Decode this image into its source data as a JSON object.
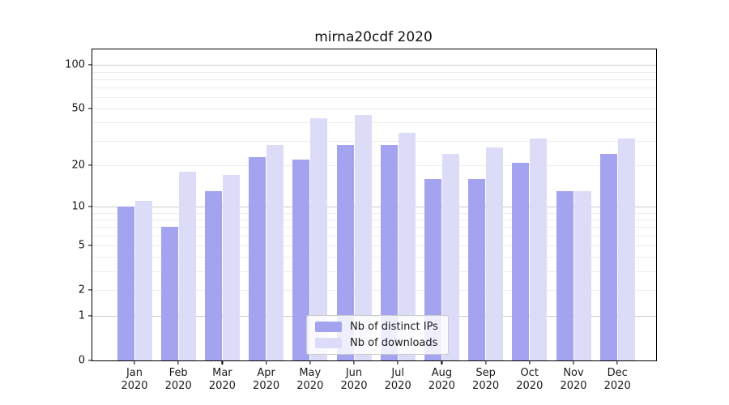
{
  "title": "mirna20cdf 2020",
  "colors": {
    "series_ips": "#a3a3f0",
    "series_downloads": "#dcdcf9",
    "gridline_minor": "#ededed",
    "gridline_major": "#cccccc",
    "spine": "#000000",
    "text": "#1a1a1a",
    "legend_border": "#cccccc"
  },
  "legend": {
    "entries": [
      {
        "label": "Nb of distinct IPs"
      },
      {
        "label": "Nb of downloads"
      }
    ]
  },
  "chart_data": {
    "type": "bar",
    "title": "mirna20cdf 2020",
    "xlabel": "",
    "ylabel": "",
    "scale": "log10(1+y)",
    "ylim": [
      0,
      128
    ],
    "grid": true,
    "legend_position": "bottom-center-inside",
    "categories": [
      "Jan",
      "Feb",
      "Mar",
      "Apr",
      "May",
      "Jun",
      "Jul",
      "Aug",
      "Sep",
      "Oct",
      "Nov",
      "Dec"
    ],
    "category_year": "2020",
    "x_tick_labels": [
      "Jan\n2020",
      "Feb\n2020",
      "Mar\n2020",
      "Apr\n2020",
      "May\n2020",
      "Jun\n2020",
      "Jul\n2020",
      "Aug\n2020",
      "Sep\n2020",
      "Oct\n2020",
      "Nov\n2020",
      "Dec\n2020"
    ],
    "y_ticks": [
      100,
      50,
      20,
      10,
      5,
      2,
      1,
      0
    ],
    "gridlines_major": [
      1,
      10,
      100
    ],
    "gridlines_minor": [
      2,
      3,
      4,
      5,
      6,
      7,
      8,
      9,
      20,
      30,
      40,
      50,
      60,
      70,
      80,
      90
    ],
    "series": [
      {
        "name": "Nb of distinct IPs",
        "color": "#a3a3f0",
        "values": [
          10,
          7,
          13,
          23,
          22,
          28,
          28,
          16,
          16,
          21,
          13,
          24
        ]
      },
      {
        "name": "Nb of downloads",
        "color": "#dcdcf9",
        "values": [
          11,
          18,
          17,
          28,
          43,
          45,
          34,
          24,
          27,
          31,
          13,
          31
        ]
      }
    ]
  }
}
